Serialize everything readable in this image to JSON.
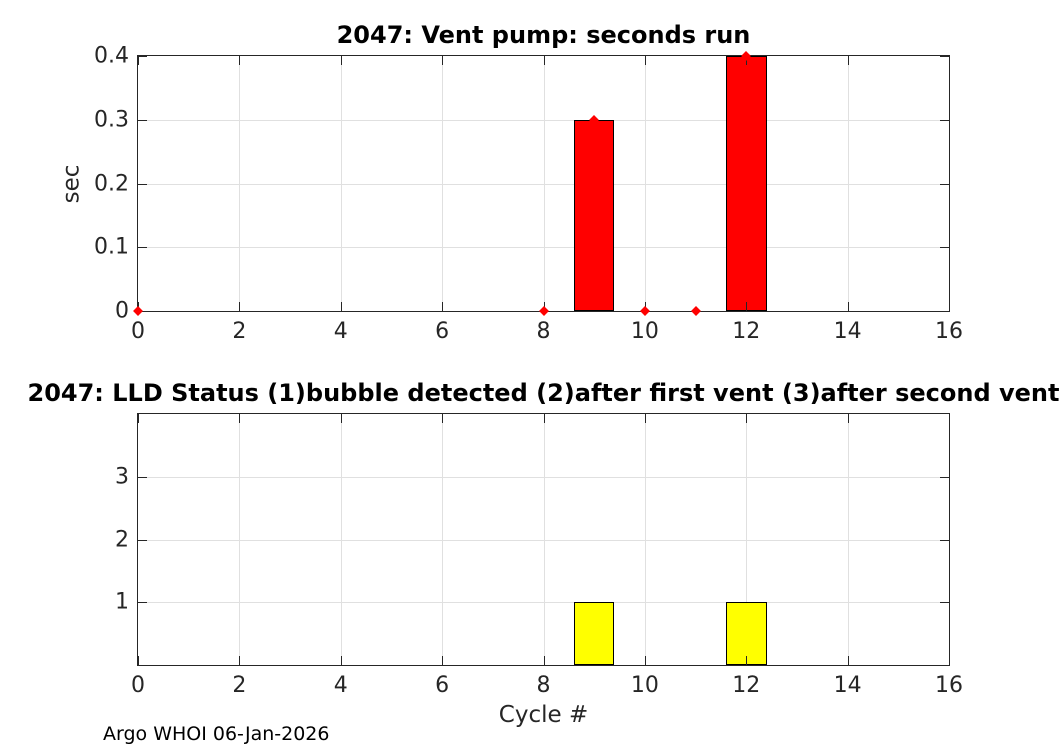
{
  "page": {
    "background": "#ffffff",
    "footer_text": "Argo WHOI 06-Jan-2026"
  },
  "style": {
    "grid_color": "#e0e0e0",
    "axis_color": "#262626",
    "text_color": "#262626",
    "title_color": "#000000"
  },
  "chart_data": [
    {
      "type": "bar",
      "title": "2047: Vent pump: seconds run",
      "xlabel": "",
      "ylabel": "sec",
      "xlim": [
        0,
        16
      ],
      "ylim": [
        0,
        0.4
      ],
      "xticks": [
        0,
        2,
        4,
        6,
        8,
        10,
        12,
        14,
        16
      ],
      "xtick_labels": [
        "0",
        "2",
        "4",
        "6",
        "8",
        "10",
        "12",
        "14",
        "16"
      ],
      "yticks": [
        0,
        0.1,
        0.2,
        0.3,
        0.4
      ],
      "ytick_labels": [
        "0",
        "0.1",
        "0.2",
        "0.3",
        "0.4"
      ],
      "grid": true,
      "legend": null,
      "bar_width": 0.8,
      "bar_color": "#ff0000",
      "bar_edge_color": "#000000",
      "marker": {
        "shape": "diamond",
        "color": "#ff0000",
        "size": 7
      },
      "x": [
        0,
        8,
        9,
        10,
        11,
        12
      ],
      "values": [
        0,
        0,
        0.3,
        0,
        0,
        0.4
      ]
    },
    {
      "type": "bar",
      "title": "2047: LLD Status   (1)bubble detected   (2)after first vent  (3)after second vent",
      "xlabel": "Cycle #",
      "ylabel": "",
      "xlim": [
        0,
        16
      ],
      "ylim": [
        0,
        4
      ],
      "xticks": [
        0,
        2,
        4,
        6,
        8,
        10,
        12,
        14,
        16
      ],
      "xtick_labels": [
        "0",
        "2",
        "4",
        "6",
        "8",
        "10",
        "12",
        "14",
        "16"
      ],
      "yticks": [
        1,
        2,
        3
      ],
      "ytick_labels": [
        "1",
        "2",
        "3"
      ],
      "grid": true,
      "legend": null,
      "bar_width": 0.8,
      "bar_color": "#ffff00",
      "bar_edge_color": "#000000",
      "marker": null,
      "x": [
        9,
        12
      ],
      "values": [
        1,
        1
      ]
    }
  ]
}
